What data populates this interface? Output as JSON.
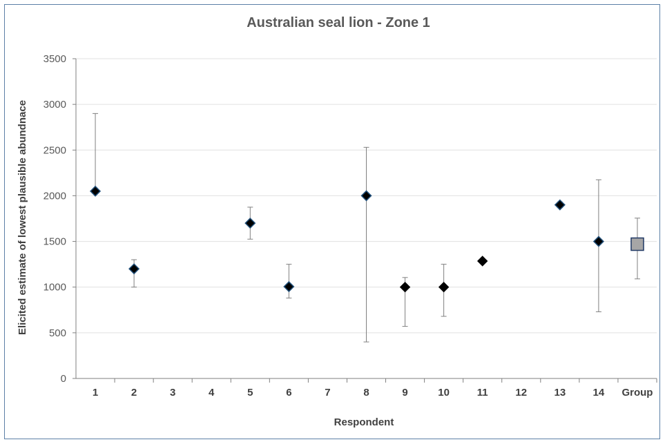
{
  "chart_data": {
    "type": "scatter",
    "title": "Australian seal lion - Zone 1",
    "xlabel": "Respondent",
    "ylabel": "Elicited estimate of lowest plausible abundnace",
    "ylim": [
      0,
      3500
    ],
    "yticks": [
      0,
      500,
      1000,
      1500,
      2000,
      2500,
      3000,
      3500
    ],
    "grid": true,
    "categories": [
      "1",
      "2",
      "3",
      "4",
      "5",
      "6",
      "7",
      "8",
      "9",
      "10",
      "11",
      "12",
      "13",
      "14",
      "Group"
    ],
    "points": [
      {
        "category": "1",
        "value": 2050,
        "low": 2050,
        "high": 2900,
        "marker": "diamond-blue-edge"
      },
      {
        "category": "2",
        "value": 1200,
        "low": 1000,
        "high": 1300,
        "marker": "diamond-blue-edge"
      },
      {
        "category": "5",
        "value": 1700,
        "low": 1525,
        "high": 1875,
        "marker": "diamond-blue-edge"
      },
      {
        "category": "6",
        "value": 1005,
        "low": 880,
        "high": 1250,
        "marker": "diamond-blue-edge"
      },
      {
        "category": "8",
        "value": 2000,
        "low": 400,
        "high": 2530,
        "marker": "diamond-blue-edge"
      },
      {
        "category": "9",
        "value": 1000,
        "low": 570,
        "high": 1105,
        "marker": "diamond"
      },
      {
        "category": "10",
        "value": 1000,
        "low": 680,
        "high": 1250,
        "marker": "diamond"
      },
      {
        "category": "11",
        "value": 1285,
        "low": 1285,
        "high": 1285,
        "marker": "diamond"
      },
      {
        "category": "13",
        "value": 1900,
        "low": 1870,
        "high": 1930,
        "marker": "diamond-blue-edge"
      },
      {
        "category": "14",
        "value": 1500,
        "low": 730,
        "high": 2175,
        "marker": "diamond-blue-edge"
      },
      {
        "category": "Group",
        "value": 1470,
        "low": 1090,
        "high": 1755,
        "marker": "square"
      }
    ],
    "colors": {
      "marker": "#000000",
      "marker_edge": "#1f4e79",
      "group_fill": "#a6a6a6",
      "group_edge": "#1f3864",
      "error_bar": "#7f7f7f",
      "grid": "#e0e0e0",
      "axis": "#7f7f7f"
    }
  }
}
